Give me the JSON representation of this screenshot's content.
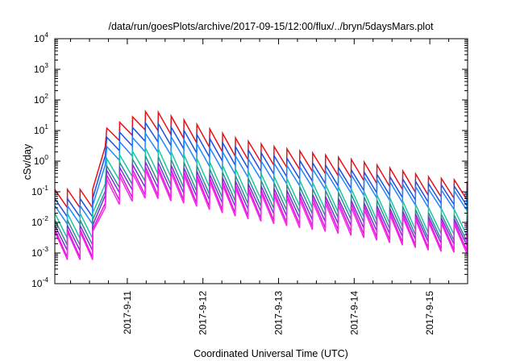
{
  "chart_data": {
    "type": "line",
    "title": "/data/run/goesPlots/archive/2017-09-15/12:00/flux/../bryn/5daysMars.plot",
    "xlabel": "Coordinated Universal Time (UTC)",
    "ylabel": "cSv/day",
    "y_scale": "log",
    "ylim": [
      0.0001,
      10000
    ],
    "xlim": [
      "2017-09-10T01:00",
      "2017-09-15T12:00"
    ],
    "x_tick_labels": [
      "2017-9-11",
      "2017-9-12",
      "2017-9-13",
      "2017-9-14",
      "2017-9-15"
    ],
    "x_ticks": [
      "2017-09-11T00:00",
      "2017-09-12T00:00",
      "2017-09-13T00:00",
      "2017-09-14T00:00",
      "2017-09-15T00:00"
    ],
    "y_tick_labels": [
      {
        "base": "10",
        "exp": "4"
      },
      {
        "base": "10",
        "exp": "3"
      },
      {
        "base": "10",
        "exp": "2"
      },
      {
        "base": "10",
        "exp": "1"
      },
      {
        "base": "10",
        "exp": "0"
      },
      {
        "base": "10",
        "exp": "-1"
      },
      {
        "base": "10",
        "exp": "-2"
      },
      {
        "base": "10",
        "exp": "-3"
      },
      {
        "base": "10",
        "exp": "-4"
      }
    ],
    "grid": false,
    "legend": "none",
    "sawtooth_period_hours": 4,
    "event_onset": "2017-09-10T17:00",
    "series": [
      {
        "color": "#e8101a",
        "peak_envelope": [
          [
            "2017-09-10T01:00",
            0.12
          ],
          [
            "2017-09-10T16:30",
            0.12
          ],
          [
            "2017-09-10T17:00",
            12
          ],
          [
            "2017-09-11T07:00",
            48
          ],
          [
            "2017-09-11T18:00",
            22
          ],
          [
            "2017-09-12T12:00",
            5
          ],
          [
            "2017-09-13T00:00",
            2.8
          ],
          [
            "2017-09-14T00:00",
            1.1
          ],
          [
            "2017-09-15T00:00",
            0.3
          ],
          [
            "2017-09-15T12:00",
            0.22
          ]
        ],
        "trough_ratio": 0.25
      },
      {
        "color": "#1e4fe0",
        "peak_envelope": [
          [
            "2017-09-10T01:00",
            0.06
          ],
          [
            "2017-09-10T16:30",
            0.06
          ],
          [
            "2017-09-10T17:00",
            6
          ],
          [
            "2017-09-11T07:00",
            20
          ],
          [
            "2017-09-11T18:00",
            10
          ],
          [
            "2017-09-12T12:00",
            2.6
          ],
          [
            "2017-09-13T00:00",
            1.4
          ],
          [
            "2017-09-14T00:00",
            0.5
          ],
          [
            "2017-09-15T00:00",
            0.18
          ],
          [
            "2017-09-15T12:00",
            0.14
          ]
        ],
        "trough_ratio": 0.25
      },
      {
        "color": "#1f86ff",
        "peak_envelope": [
          [
            "2017-09-10T01:00",
            0.035
          ],
          [
            "2017-09-10T16:30",
            0.035
          ],
          [
            "2017-09-10T17:00",
            3
          ],
          [
            "2017-09-11T07:00",
            9
          ],
          [
            "2017-09-11T18:00",
            5
          ],
          [
            "2017-09-12T12:00",
            1.3
          ],
          [
            "2017-09-13T00:00",
            0.8
          ],
          [
            "2017-09-14T00:00",
            0.35
          ],
          [
            "2017-09-15T00:00",
            0.12
          ],
          [
            "2017-09-15T12:00",
            0.1
          ]
        ],
        "trough_ratio": 0.25
      },
      {
        "color": "#1cc7a6",
        "peak_envelope": [
          [
            "2017-09-10T01:00",
            0.02
          ],
          [
            "2017-09-10T16:30",
            0.02
          ],
          [
            "2017-09-10T17:00",
            1.2
          ],
          [
            "2017-09-11T07:00",
            3
          ],
          [
            "2017-09-11T18:00",
            1.6
          ],
          [
            "2017-09-12T12:00",
            0.5
          ],
          [
            "2017-09-13T00:00",
            0.3
          ],
          [
            "2017-09-14T00:00",
            0.12
          ],
          [
            "2017-09-15T00:00",
            0.03
          ],
          [
            "2017-09-15T12:00",
            0.025
          ]
        ],
        "trough_ratio": 0.15
      },
      {
        "color": "#2f8f8f",
        "peak_envelope": [
          [
            "2017-09-10T01:00",
            0.012
          ],
          [
            "2017-09-10T16:30",
            0.012
          ],
          [
            "2017-09-10T17:00",
            0.7
          ],
          [
            "2017-09-11T07:00",
            1.6
          ],
          [
            "2017-09-11T18:00",
            0.9
          ],
          [
            "2017-09-12T12:00",
            0.3
          ],
          [
            "2017-09-13T00:00",
            0.18
          ],
          [
            "2017-09-14T00:00",
            0.08
          ],
          [
            "2017-09-15T00:00",
            0.02
          ],
          [
            "2017-09-15T12:00",
            0.016
          ]
        ],
        "trough_ratio": 0.15
      },
      {
        "color": "#7a2fd6",
        "peak_envelope": [
          [
            "2017-09-10T01:00",
            0.008
          ],
          [
            "2017-09-10T16:30",
            0.008
          ],
          [
            "2017-09-10T17:00",
            0.5
          ],
          [
            "2017-09-11T07:00",
            1.0
          ],
          [
            "2017-09-11T18:00",
            0.6
          ],
          [
            "2017-09-12T12:00",
            0.2
          ],
          [
            "2017-09-13T00:00",
            0.12
          ],
          [
            "2017-09-14T00:00",
            0.05
          ],
          [
            "2017-09-15T00:00",
            0.015
          ],
          [
            "2017-09-15T12:00",
            0.012
          ]
        ],
        "trough_ratio": 0.15
      },
      {
        "color": "#d81ad8",
        "peak_envelope": [
          [
            "2017-09-10T01:00",
            0.006
          ],
          [
            "2017-09-10T16:30",
            0.006
          ],
          [
            "2017-09-10T17:00",
            0.35
          ],
          [
            "2017-09-11T07:00",
            0.7
          ],
          [
            "2017-09-11T18:00",
            0.45
          ],
          [
            "2017-09-12T12:00",
            0.15
          ],
          [
            "2017-09-13T00:00",
            0.09
          ],
          [
            "2017-09-14T00:00",
            0.04
          ],
          [
            "2017-09-15T00:00",
            0.012
          ],
          [
            "2017-09-15T12:00",
            0.01
          ]
        ],
        "trough_ratio": 0.12
      },
      {
        "color": "#ff22ee",
        "peak_envelope": [
          [
            "2017-09-10T01:00",
            0.005
          ],
          [
            "2017-09-10T16:30",
            0.005
          ],
          [
            "2017-09-10T17:00",
            0.25
          ],
          [
            "2017-09-11T07:00",
            0.55
          ],
          [
            "2017-09-11T18:00",
            0.35
          ],
          [
            "2017-09-12T12:00",
            0.12
          ],
          [
            "2017-09-13T00:00",
            0.07
          ],
          [
            "2017-09-14T00:00",
            0.03
          ],
          [
            "2017-09-15T00:00",
            0.01
          ],
          [
            "2017-09-15T12:00",
            0.008
          ]
        ],
        "trough_ratio": 0.12
      }
    ]
  }
}
